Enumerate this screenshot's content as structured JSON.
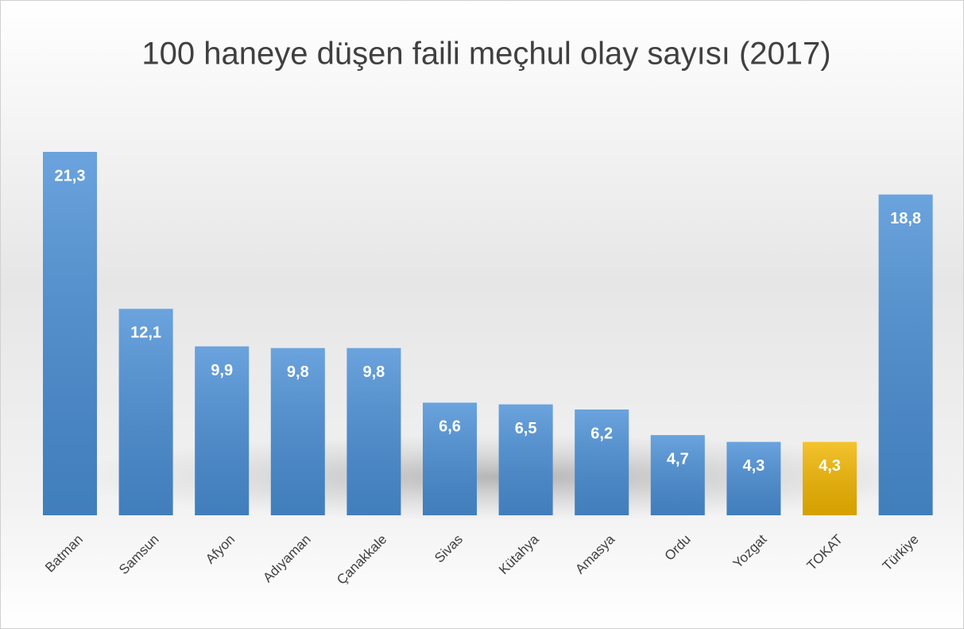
{
  "chart_data": {
    "type": "bar",
    "title": "100 haneye düşen faili meçhul olay sayısı (2017)",
    "categories": [
      "Batman",
      "Samsun",
      "Afyon",
      "Adıyaman",
      "Çanakkale",
      "Sivas",
      "Kütahya",
      "Amasya",
      "Ordu",
      "Yozgat",
      "TOKAT",
      "Türkiye"
    ],
    "values": [
      21.3,
      12.1,
      9.9,
      9.8,
      9.8,
      6.6,
      6.5,
      6.2,
      4.7,
      4.3,
      4.3,
      18.8
    ],
    "value_labels": [
      "21,3",
      "12,1",
      "9,9",
      "9,8",
      "9,8",
      "6,6",
      "6,5",
      "6,2",
      "4,7",
      "4,3",
      "4,3",
      "18,8"
    ],
    "colors": [
      "#4a8fd6",
      "#4a8fd6",
      "#4a8fd6",
      "#4a8fd6",
      "#4a8fd6",
      "#4a8fd6",
      "#4a8fd6",
      "#4a8fd6",
      "#4a8fd6",
      "#4a8fd6",
      "#f2b600",
      "#4a8fd6"
    ],
    "grid": false
  }
}
